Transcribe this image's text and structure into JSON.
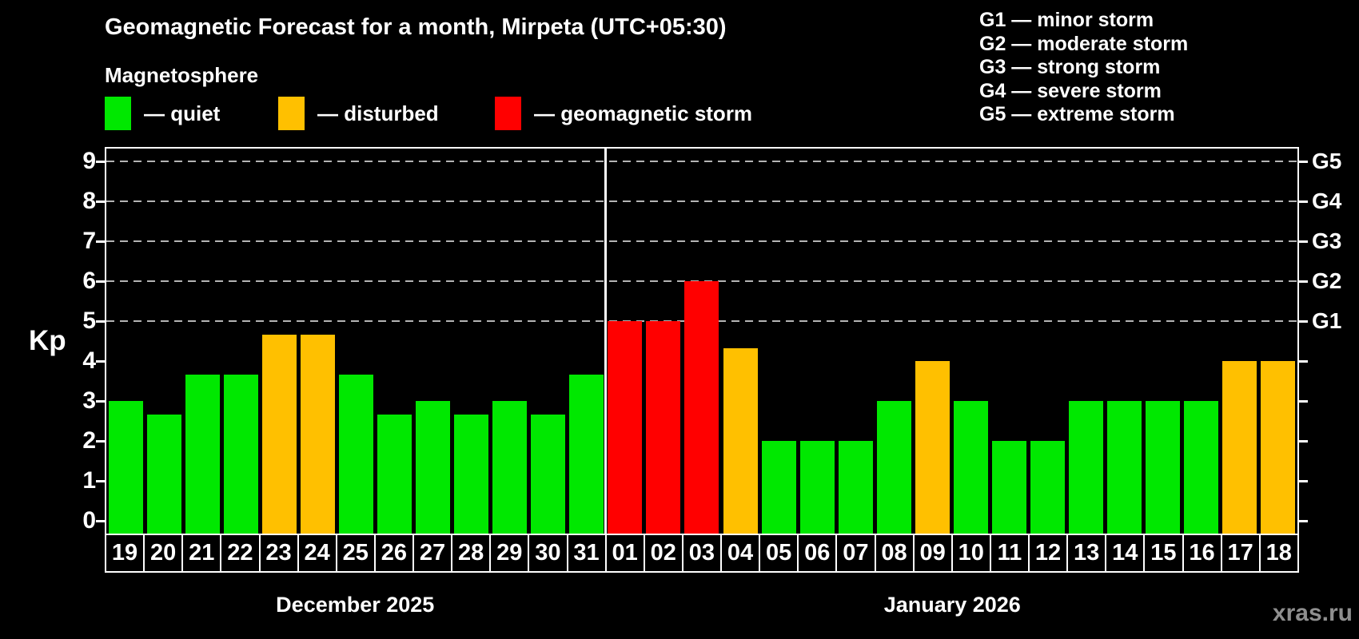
{
  "title": "Geomagnetic Forecast for a month, Mirpeta (UTC+05:30)",
  "subtitle": "Magnetosphere",
  "legend": [
    {
      "name": "quiet",
      "label": "— quiet",
      "color": "#00e800"
    },
    {
      "name": "disturbed",
      "label": "— disturbed",
      "color": "#ffc000"
    },
    {
      "name": "storm",
      "label": "— geomagnetic storm",
      "color": "#ff0000"
    }
  ],
  "storm_scale": [
    "G1 — minor storm",
    "G2 — moderate storm",
    "G3 — strong storm",
    "G4 — severe storm",
    "G5 — extreme storm"
  ],
  "watermark": "xras.ru",
  "chart_data": {
    "type": "bar",
    "ylabel": "Kp",
    "ylim": [
      0,
      9.7
    ],
    "yticks": [
      0,
      1,
      2,
      3,
      4,
      5,
      6,
      7,
      8,
      9
    ],
    "gridlines": [
      5,
      6,
      7,
      8,
      9
    ],
    "grid_style": "dashed",
    "right_axis": [
      {
        "label": "G1",
        "kp": 5
      },
      {
        "label": "G2",
        "kp": 6
      },
      {
        "label": "G3",
        "kp": 7
      },
      {
        "label": "G4",
        "kp": 8
      },
      {
        "label": "G5",
        "kp": 9
      }
    ],
    "months": [
      {
        "label": "December 2025",
        "day_count": 13
      },
      {
        "label": "January 2026",
        "day_count": 18
      }
    ],
    "bars": [
      {
        "day": "19",
        "kp": 3.0,
        "status": "quiet"
      },
      {
        "day": "20",
        "kp": 2.67,
        "status": "quiet"
      },
      {
        "day": "21",
        "kp": 3.67,
        "status": "quiet"
      },
      {
        "day": "22",
        "kp": 3.67,
        "status": "quiet"
      },
      {
        "day": "23",
        "kp": 4.67,
        "status": "disturbed"
      },
      {
        "day": "24",
        "kp": 4.67,
        "status": "disturbed"
      },
      {
        "day": "25",
        "kp": 3.67,
        "status": "quiet"
      },
      {
        "day": "26",
        "kp": 2.67,
        "status": "quiet"
      },
      {
        "day": "27",
        "kp": 3.0,
        "status": "quiet"
      },
      {
        "day": "28",
        "kp": 2.67,
        "status": "quiet"
      },
      {
        "day": "29",
        "kp": 3.0,
        "status": "quiet"
      },
      {
        "day": "30",
        "kp": 2.67,
        "status": "quiet"
      },
      {
        "day": "31",
        "kp": 3.67,
        "status": "quiet"
      },
      {
        "day": "01",
        "kp": 5.0,
        "status": "storm"
      },
      {
        "day": "02",
        "kp": 5.0,
        "status": "storm"
      },
      {
        "day": "03",
        "kp": 6.0,
        "status": "storm"
      },
      {
        "day": "04",
        "kp": 4.33,
        "status": "disturbed"
      },
      {
        "day": "05",
        "kp": 2.0,
        "status": "quiet"
      },
      {
        "day": "06",
        "kp": 2.0,
        "status": "quiet"
      },
      {
        "day": "07",
        "kp": 2.0,
        "status": "quiet"
      },
      {
        "day": "08",
        "kp": 3.0,
        "status": "quiet"
      },
      {
        "day": "09",
        "kp": 4.0,
        "status": "disturbed"
      },
      {
        "day": "10",
        "kp": 3.0,
        "status": "quiet"
      },
      {
        "day": "11",
        "kp": 2.0,
        "status": "quiet"
      },
      {
        "day": "12",
        "kp": 2.0,
        "status": "quiet"
      },
      {
        "day": "13",
        "kp": 3.0,
        "status": "quiet"
      },
      {
        "day": "14",
        "kp": 3.0,
        "status": "quiet"
      },
      {
        "day": "15",
        "kp": 3.0,
        "status": "quiet"
      },
      {
        "day": "16",
        "kp": 3.0,
        "status": "quiet"
      },
      {
        "day": "17",
        "kp": 4.0,
        "status": "disturbed"
      },
      {
        "day": "18",
        "kp": 4.0,
        "status": "disturbed"
      }
    ]
  }
}
